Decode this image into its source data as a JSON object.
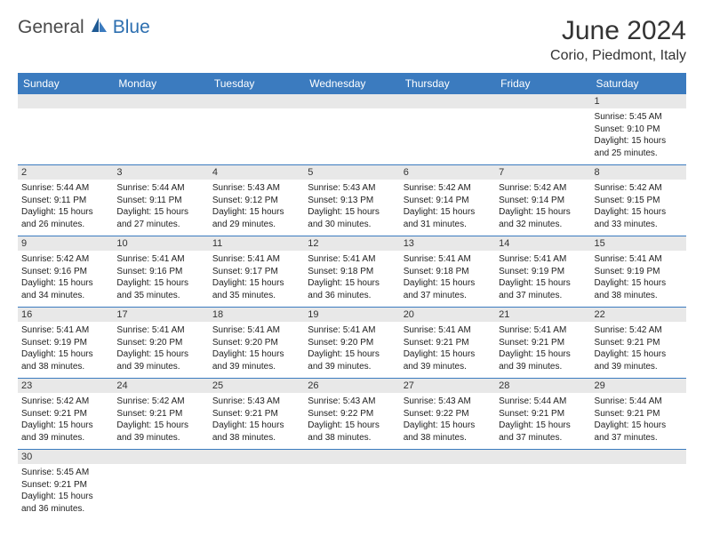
{
  "logo": {
    "part1": "General",
    "part2": "Blue"
  },
  "title": "June 2024",
  "location": "Corio, Piedmont, Italy",
  "header_bg": "#3b7bbf",
  "weekdays": [
    "Sunday",
    "Monday",
    "Tuesday",
    "Wednesday",
    "Thursday",
    "Friday",
    "Saturday"
  ],
  "weeks": [
    [
      null,
      null,
      null,
      null,
      null,
      null,
      {
        "n": "1",
        "rise": "5:45 AM",
        "set": "9:10 PM",
        "dayl": "15 hours and 25 minutes."
      }
    ],
    [
      {
        "n": "2",
        "rise": "5:44 AM",
        "set": "9:11 PM",
        "dayl": "15 hours and 26 minutes."
      },
      {
        "n": "3",
        "rise": "5:44 AM",
        "set": "9:11 PM",
        "dayl": "15 hours and 27 minutes."
      },
      {
        "n": "4",
        "rise": "5:43 AM",
        "set": "9:12 PM",
        "dayl": "15 hours and 29 minutes."
      },
      {
        "n": "5",
        "rise": "5:43 AM",
        "set": "9:13 PM",
        "dayl": "15 hours and 30 minutes."
      },
      {
        "n": "6",
        "rise": "5:42 AM",
        "set": "9:14 PM",
        "dayl": "15 hours and 31 minutes."
      },
      {
        "n": "7",
        "rise": "5:42 AM",
        "set": "9:14 PM",
        "dayl": "15 hours and 32 minutes."
      },
      {
        "n": "8",
        "rise": "5:42 AM",
        "set": "9:15 PM",
        "dayl": "15 hours and 33 minutes."
      }
    ],
    [
      {
        "n": "9",
        "rise": "5:42 AM",
        "set": "9:16 PM",
        "dayl": "15 hours and 34 minutes."
      },
      {
        "n": "10",
        "rise": "5:41 AM",
        "set": "9:16 PM",
        "dayl": "15 hours and 35 minutes."
      },
      {
        "n": "11",
        "rise": "5:41 AM",
        "set": "9:17 PM",
        "dayl": "15 hours and 35 minutes."
      },
      {
        "n": "12",
        "rise": "5:41 AM",
        "set": "9:18 PM",
        "dayl": "15 hours and 36 minutes."
      },
      {
        "n": "13",
        "rise": "5:41 AM",
        "set": "9:18 PM",
        "dayl": "15 hours and 37 minutes."
      },
      {
        "n": "14",
        "rise": "5:41 AM",
        "set": "9:19 PM",
        "dayl": "15 hours and 37 minutes."
      },
      {
        "n": "15",
        "rise": "5:41 AM",
        "set": "9:19 PM",
        "dayl": "15 hours and 38 minutes."
      }
    ],
    [
      {
        "n": "16",
        "rise": "5:41 AM",
        "set": "9:19 PM",
        "dayl": "15 hours and 38 minutes."
      },
      {
        "n": "17",
        "rise": "5:41 AM",
        "set": "9:20 PM",
        "dayl": "15 hours and 39 minutes."
      },
      {
        "n": "18",
        "rise": "5:41 AM",
        "set": "9:20 PM",
        "dayl": "15 hours and 39 minutes."
      },
      {
        "n": "19",
        "rise": "5:41 AM",
        "set": "9:20 PM",
        "dayl": "15 hours and 39 minutes."
      },
      {
        "n": "20",
        "rise": "5:41 AM",
        "set": "9:21 PM",
        "dayl": "15 hours and 39 minutes."
      },
      {
        "n": "21",
        "rise": "5:41 AM",
        "set": "9:21 PM",
        "dayl": "15 hours and 39 minutes."
      },
      {
        "n": "22",
        "rise": "5:42 AM",
        "set": "9:21 PM",
        "dayl": "15 hours and 39 minutes."
      }
    ],
    [
      {
        "n": "23",
        "rise": "5:42 AM",
        "set": "9:21 PM",
        "dayl": "15 hours and 39 minutes."
      },
      {
        "n": "24",
        "rise": "5:42 AM",
        "set": "9:21 PM",
        "dayl": "15 hours and 39 minutes."
      },
      {
        "n": "25",
        "rise": "5:43 AM",
        "set": "9:21 PM",
        "dayl": "15 hours and 38 minutes."
      },
      {
        "n": "26",
        "rise": "5:43 AM",
        "set": "9:22 PM",
        "dayl": "15 hours and 38 minutes."
      },
      {
        "n": "27",
        "rise": "5:43 AM",
        "set": "9:22 PM",
        "dayl": "15 hours and 38 minutes."
      },
      {
        "n": "28",
        "rise": "5:44 AM",
        "set": "9:21 PM",
        "dayl": "15 hours and 37 minutes."
      },
      {
        "n": "29",
        "rise": "5:44 AM",
        "set": "9:21 PM",
        "dayl": "15 hours and 37 minutes."
      }
    ],
    [
      {
        "n": "30",
        "rise": "5:45 AM",
        "set": "9:21 PM",
        "dayl": "15 hours and 36 minutes."
      },
      null,
      null,
      null,
      null,
      null,
      null
    ]
  ],
  "labels": {
    "sunrise": "Sunrise:",
    "sunset": "Sunset:",
    "daylight": "Daylight:"
  }
}
